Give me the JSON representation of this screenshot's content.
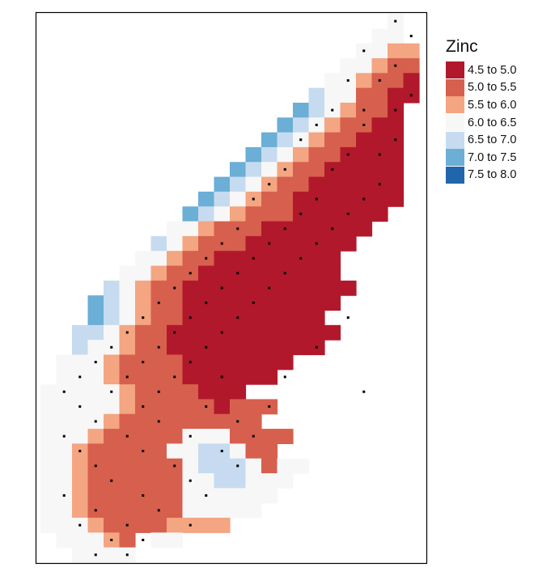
{
  "legend": {
    "title": "Zinc",
    "classes": [
      {
        "label": "4.5 to 5.0",
        "color": "#b2182b"
      },
      {
        "label": "5.0 to 5.5",
        "color": "#d6604d"
      },
      {
        "label": "5.5 to 6.0",
        "color": "#f4a582"
      },
      {
        "label": "6.0 to 6.5",
        "color": "#f7f7f7"
      },
      {
        "label": "6.5 to 7.0",
        "color": "#c6dbef"
      },
      {
        "label": "7.0 to 7.5",
        "color": "#6baed6"
      },
      {
        "label": "7.5 to 8.0",
        "color": "#2166ac"
      }
    ]
  },
  "map": {
    "frame_color": "#000000",
    "point_color": "#000000",
    "grid_cols": 24,
    "grid_rows": 37,
    "raster_rows": [
      "......................4.",
      ".....................44.",
      "....................4433",
      "...................44322",
      "..................443221",
      ".................5442211",
      "................6543221.",
      "...............65432211.",
      "..............654322111.",
      ".............6543221111.",
      "............65432211111.",
      "...........654322111111.",
      "..........6543221111111.",
      ".........6543222111111..",
      "........4432221111111...",
      ".......5432221111111....",
      "......4432211111111.....",
      ".....44322111111111.....",
      "....5432211111111111....",
      "...6543221111111111.....",
      "...654322111111111......",
      "..55432211111111111.....",
      "..5443221111111111......",
      ".444322221111111.......",
      ".44432222111111.........",
      "4444432222111...........",
      "444443222221222.........",
      "44443222222222..........",
      "4443222224442222........",
      "443222224455422.........",
      "44322222245554244.......",
      "4432222224455444........",
      "443222222444444.........",
      "44322222244444..........",
      "444322223333............",
      ".44432.44...............",
      "..4444.................."
    ],
    "points": [
      [
        22,
        0
      ],
      [
        23,
        1
      ],
      [
        20,
        2
      ],
      [
        22,
        3
      ],
      [
        19,
        4
      ],
      [
        21,
        4
      ],
      [
        23,
        5
      ],
      [
        18,
        6
      ],
      [
        20,
        6
      ],
      [
        22,
        6
      ],
      [
        17,
        7
      ],
      [
        20,
        7
      ],
      [
        22,
        8
      ],
      [
        16,
        8
      ],
      [
        19,
        9
      ],
      [
        21,
        9
      ],
      [
        15,
        10
      ],
      [
        18,
        10
      ],
      [
        21,
        11
      ],
      [
        14,
        11
      ],
      [
        17,
        12
      ],
      [
        20,
        12
      ],
      [
        13,
        12
      ],
      [
        16,
        13
      ],
      [
        19,
        13
      ],
      [
        12,
        14
      ],
      [
        15,
        14
      ],
      [
        18,
        14
      ],
      [
        11,
        15
      ],
      [
        14,
        15
      ],
      [
        17,
        15
      ],
      [
        10,
        16
      ],
      [
        13,
        16
      ],
      [
        16,
        16
      ],
      [
        9,
        17
      ],
      [
        12,
        17
      ],
      [
        15,
        17
      ],
      [
        8,
        18
      ],
      [
        11,
        18
      ],
      [
        14,
        18
      ],
      [
        7,
        19
      ],
      [
        10,
        19
      ],
      [
        13,
        19
      ],
      [
        6,
        20
      ],
      [
        9,
        20
      ],
      [
        12,
        20
      ],
      [
        5,
        21
      ],
      [
        8,
        21
      ],
      [
        11,
        21
      ],
      [
        4,
        22
      ],
      [
        7,
        22
      ],
      [
        10,
        22
      ],
      [
        3,
        23
      ],
      [
        6,
        23
      ],
      [
        9,
        23
      ],
      [
        2,
        24
      ],
      [
        5,
        24
      ],
      [
        8,
        24
      ],
      [
        1,
        25
      ],
      [
        4,
        25
      ],
      [
        7,
        25
      ],
      [
        2,
        26
      ],
      [
        6,
        26
      ],
      [
        10,
        26
      ],
      [
        3,
        27
      ],
      [
        7,
        27
      ],
      [
        12,
        27
      ],
      [
        1,
        28
      ],
      [
        5,
        28
      ],
      [
        9,
        28
      ],
      [
        13,
        28
      ],
      [
        2,
        29
      ],
      [
        6,
        29
      ],
      [
        11,
        29
      ],
      [
        3,
        30
      ],
      [
        8,
        30
      ],
      [
        12,
        30
      ],
      [
        4,
        31
      ],
      [
        9,
        31
      ],
      [
        1,
        32
      ],
      [
        6,
        32
      ],
      [
        10,
        32
      ],
      [
        3,
        33
      ],
      [
        7,
        33
      ],
      [
        2,
        34
      ],
      [
        5,
        34
      ],
      [
        9,
        34
      ],
      [
        4,
        35
      ],
      [
        6,
        35
      ],
      [
        3,
        36
      ],
      [
        5,
        36
      ],
      [
        19,
        20
      ],
      [
        17,
        22
      ],
      [
        15,
        24
      ],
      [
        20,
        25
      ],
      [
        14,
        26
      ],
      [
        11,
        24
      ]
    ]
  }
}
